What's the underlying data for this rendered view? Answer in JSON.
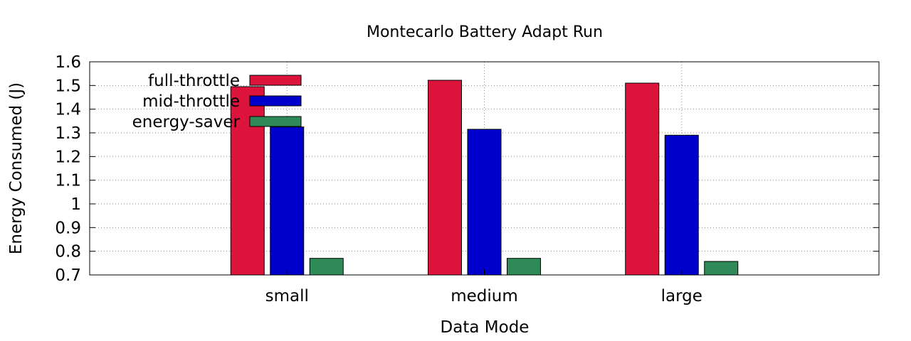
{
  "chart_data": {
    "type": "bar",
    "title": "Montecarlo Battery Adapt Run",
    "xlabel": "Data Mode",
    "ylabel": "Energy Consumed (J)",
    "categories": [
      "small",
      "medium",
      "large"
    ],
    "ylim": [
      0.7,
      1.6
    ],
    "yticks": [
      "0.7",
      "0.8",
      "0.9",
      "1",
      "1.1",
      "1.2",
      "1.3",
      "1.4",
      "1.5",
      "1.6"
    ],
    "grid": true,
    "legend_position": "top-left",
    "series": [
      {
        "name": "full-throttle",
        "color": "#dc143c",
        "values": [
          1.495,
          1.522,
          1.51
        ]
      },
      {
        "name": "mid-throttle",
        "color": "#0000cd",
        "values": [
          1.325,
          1.315,
          1.29
        ]
      },
      {
        "name": "energy-saver",
        "color": "#2e8b57",
        "values": [
          0.77,
          0.77,
          0.757
        ]
      }
    ]
  }
}
